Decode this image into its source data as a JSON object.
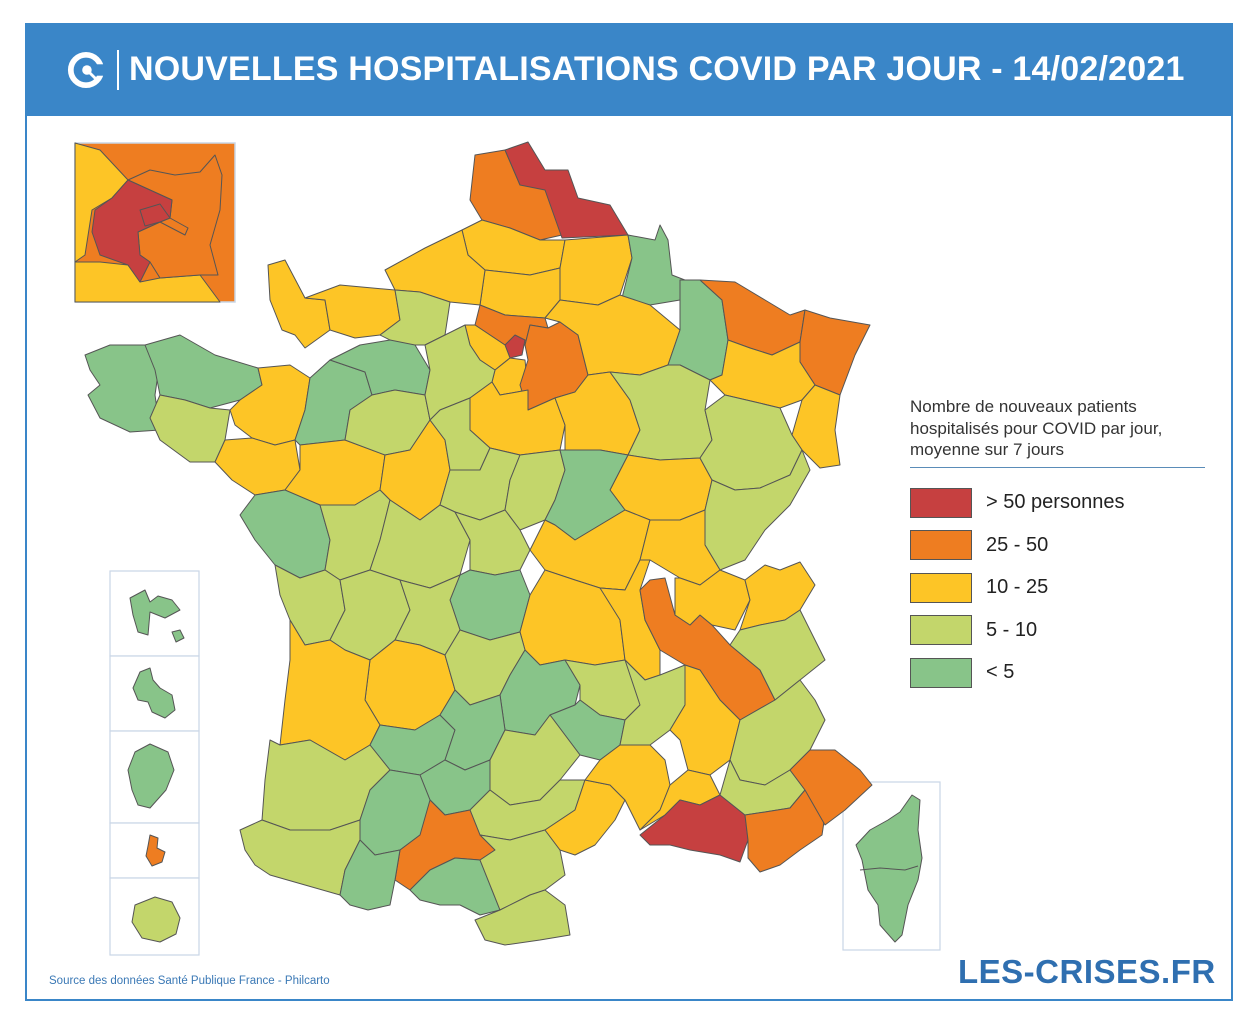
{
  "header": {
    "title": "NOUVELLES HOSPITALISATIONS COVID PAR JOUR - 14/02/2021"
  },
  "legend": {
    "title_lines": [
      "Nombre de nouveaux patients",
      "hospitalisés pour COVID par jour,",
      "moyenne sur 7 jours"
    ],
    "items": [
      {
        "label": "> 50 personnes",
        "color": "#c64040"
      },
      {
        "label": "25 - 50",
        "color": "#ee7d21"
      },
      {
        "label": "10 - 25",
        "color": "#fdc526"
      },
      {
        "label": "5 - 10",
        "color": "#c3d66b"
      },
      {
        "label": "< 5",
        "color": "#88c489"
      }
    ]
  },
  "footer": {
    "source": "Source des données Santé Publique France - Philcarto",
    "brand": "LES-CRISES.FR"
  },
  "colors": {
    "accent": "#3a86c8",
    "gt50": "#c64040",
    "c25_50": "#ee7d21",
    "c10_25": "#fdc526",
    "c5_10": "#c3d66b",
    "lt5": "#88c489"
  }
}
